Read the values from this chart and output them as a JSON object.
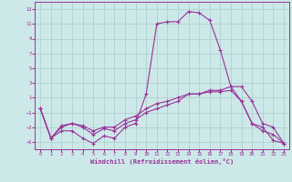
{
  "xlabel": "Windchill (Refroidissement éolien,°C)",
  "background_color": "#cde8e8",
  "line_color": "#993399",
  "grid_color": "#aacccc",
  "xlim": [
    -0.5,
    23.5
  ],
  "ylim": [
    -6,
    14
  ],
  "xticks": [
    0,
    1,
    2,
    3,
    4,
    5,
    6,
    7,
    8,
    9,
    10,
    11,
    12,
    13,
    14,
    15,
    16,
    17,
    18,
    19,
    20,
    21,
    22,
    23
  ],
  "yticks": [
    -5,
    -3,
    -1,
    1,
    3,
    5,
    7,
    9,
    11,
    13
  ],
  "line1_x": [
    0,
    1,
    2,
    3,
    4,
    5,
    6,
    7,
    8,
    9,
    10,
    11,
    12,
    13,
    14,
    15,
    16,
    17,
    18,
    19,
    20,
    21,
    22,
    23
  ],
  "line1_y": [
    -0.5,
    -4.5,
    -3.5,
    -3.5,
    -4.5,
    -5.2,
    -4.2,
    -4.5,
    -3.0,
    -2.5,
    1.5,
    11,
    11.3,
    11.3,
    12.7,
    12.5,
    11.5,
    7.5,
    2.5,
    0.5,
    -2.5,
    -3.0,
    -4.8,
    -5.2
  ],
  "line2_x": [
    0,
    1,
    2,
    3,
    4,
    5,
    6,
    7,
    8,
    9,
    10,
    11,
    12,
    13,
    14,
    15,
    16,
    17,
    18,
    19,
    20,
    21,
    22,
    23
  ],
  "line2_y": [
    -0.5,
    -4.5,
    -3.0,
    -2.5,
    -3.0,
    -4.0,
    -3.2,
    -3.5,
    -2.5,
    -2.0,
    -1.0,
    -0.5,
    0.0,
    0.5,
    1.5,
    1.5,
    2.0,
    2.0,
    2.5,
    2.5,
    0.5,
    -2.5,
    -3.0,
    -5.2
  ],
  "line3_x": [
    0,
    1,
    2,
    3,
    4,
    5,
    6,
    7,
    8,
    9,
    10,
    11,
    12,
    13,
    14,
    15,
    16,
    17,
    18,
    19,
    20,
    21,
    22,
    23
  ],
  "line3_y": [
    -0.5,
    -4.5,
    -2.8,
    -2.5,
    -2.8,
    -3.5,
    -3.0,
    -3.0,
    -2.0,
    -1.5,
    -0.5,
    0.2,
    0.5,
    1.0,
    1.5,
    1.5,
    1.8,
    1.8,
    2.0,
    0.5,
    -2.5,
    -3.5,
    -4.0,
    -5.2
  ]
}
